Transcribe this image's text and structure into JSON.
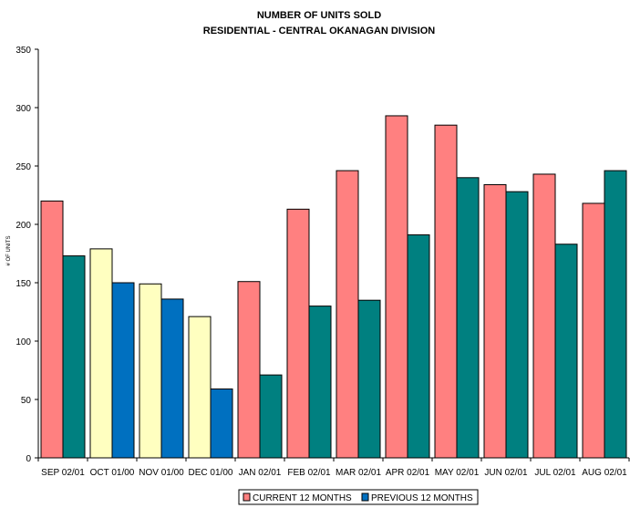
{
  "chart_data": {
    "type": "bar",
    "title": "NUMBER OF UNITS SOLD",
    "subtitle": "RESIDENTIAL - CENTRAL OKANAGAN DIVISION",
    "ylabel": "# OF UNITS",
    "xlabel": "",
    "ylim": [
      0,
      350
    ],
    "yticks": [
      0,
      50,
      100,
      150,
      200,
      250,
      300,
      350
    ],
    "grid": false,
    "legend_position": "bottom",
    "categories": [
      "SEP 02/01",
      "OCT 01/00",
      "NOV 01/00",
      "DEC 01/00",
      "JAN 02/01",
      "FEB 02/01",
      "MAR 02/01",
      "APR 02/01",
      "MAY 02/01",
      "JUN 02/01",
      "JUL 02/01",
      "AUG 02/01"
    ],
    "series": [
      {
        "name": "CURRENT 12 MONTHS",
        "values": [
          220,
          179,
          149,
          121,
          151,
          213,
          246,
          293,
          285,
          234,
          243,
          218
        ],
        "colors": [
          "#ff8080",
          "#ffffc0",
          "#ffffc0",
          "#ffffc0",
          "#ff8080",
          "#ff8080",
          "#ff8080",
          "#ff8080",
          "#ff8080",
          "#ff8080",
          "#ff8080",
          "#ff8080"
        ]
      },
      {
        "name": "PREVIOUS 12 MONTHS",
        "values": [
          173,
          150,
          136,
          59,
          71,
          130,
          135,
          191,
          240,
          228,
          183,
          246
        ],
        "colors": [
          "#008080",
          "#0070c0",
          "#0070c0",
          "#0070c0",
          "#008080",
          "#008080",
          "#008080",
          "#008080",
          "#008080",
          "#008080",
          "#008080",
          "#008080"
        ]
      }
    ],
    "legend_colors": [
      "#ff8080",
      "#0070c0"
    ]
  }
}
